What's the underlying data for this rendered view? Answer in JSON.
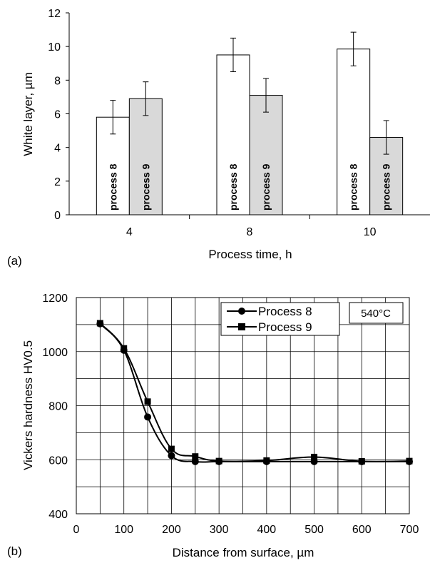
{
  "chart_data": [
    {
      "type": "bar",
      "panel_label": "(a)",
      "xlabel": "Process time, h",
      "ylabel": "White layer, µm",
      "categories": [
        "4",
        "8",
        "10"
      ],
      "ylim": [
        0,
        12
      ],
      "yticks": [
        0,
        2,
        4,
        6,
        8,
        10,
        12
      ],
      "series": [
        {
          "name": "process 8",
          "values": [
            5.8,
            9.5,
            9.85
          ],
          "errors": [
            1.0,
            1.0,
            1.0
          ],
          "color": "#ffffff"
        },
        {
          "name": "process 9",
          "values": [
            6.9,
            7.1,
            4.6
          ],
          "errors": [
            1.0,
            1.0,
            1.0
          ],
          "color": "#d9d9d9"
        }
      ],
      "grid": false
    },
    {
      "type": "line",
      "panel_label": "(b)",
      "xlabel": "Distance from surface, µm",
      "ylabel": "Vickers hardness HV0.5",
      "annotation": "540°C",
      "xlim": [
        0,
        700
      ],
      "ylim": [
        400,
        1200
      ],
      "xticks": [
        0,
        100,
        200,
        300,
        400,
        500,
        600,
        700
      ],
      "yticks": [
        400,
        600,
        800,
        1000,
        1200
      ],
      "grid": true,
      "legend": "top-right",
      "series": [
        {
          "name": "Process 8",
          "marker": "circle",
          "x": [
            50,
            100,
            150,
            200,
            250,
            300,
            400,
            500,
            600,
            700
          ],
          "y": [
            1103,
            1005,
            758,
            615,
            593,
            593,
            593,
            593,
            593,
            593
          ]
        },
        {
          "name": "Process 9",
          "marker": "square",
          "x": [
            50,
            100,
            150,
            200,
            250,
            300,
            400,
            500,
            600,
            700
          ],
          "y": [
            1105,
            1012,
            815,
            640,
            612,
            595,
            597,
            610,
            594,
            595
          ]
        }
      ]
    }
  ]
}
